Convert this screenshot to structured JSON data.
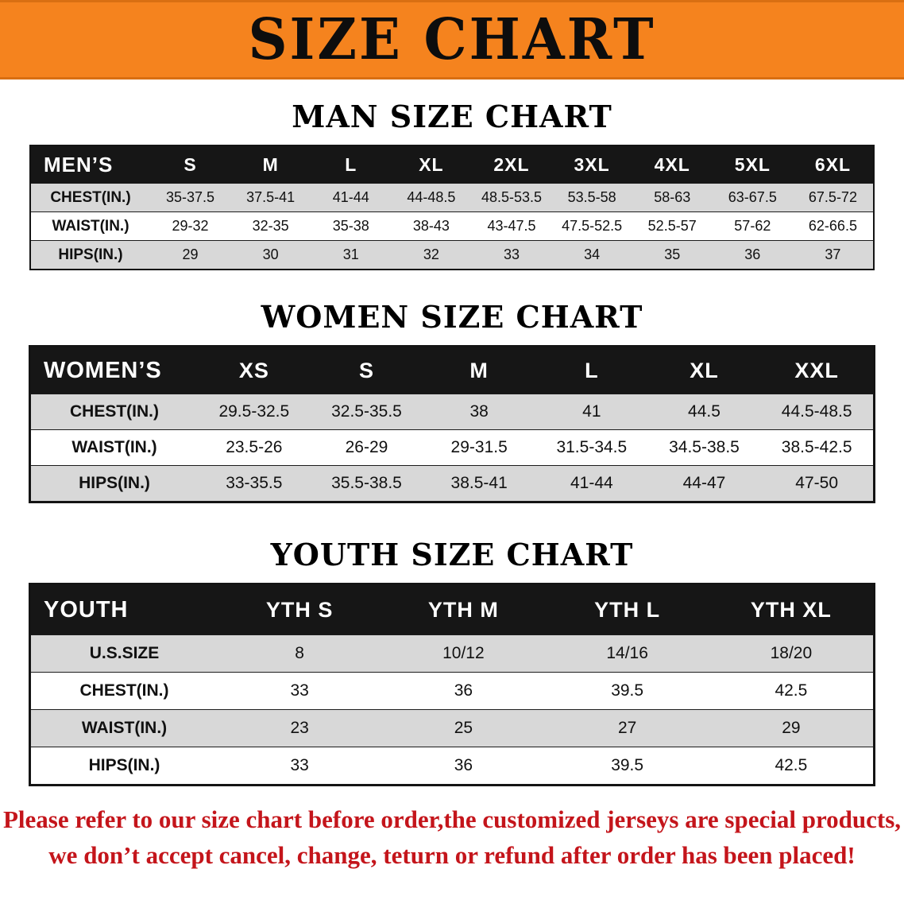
{
  "banner": {
    "title": "SIZE CHART"
  },
  "colors": {
    "banner_orange": "#F5831E",
    "table_header_black": "#161616",
    "row_stripe_gray": "#D8D8D8",
    "footer_red": "#C4151B"
  },
  "sections": [
    {
      "id": "men",
      "title": "MAN SIZE CHART",
      "table": {
        "header": [
          "MEN’S",
          "S",
          "M",
          "L",
          "XL",
          "2XL",
          "3XL",
          "4XL",
          "5XL",
          "6XL"
        ],
        "rows": [
          [
            "CHEST(IN.)",
            "35-37.5",
            "37.5-41",
            "41-44",
            "44-48.5",
            "48.5-53.5",
            "53.5-58",
            "58-63",
            "63-67.5",
            "67.5-72"
          ],
          [
            "WAIST(IN.)",
            "29-32",
            "32-35",
            "35-38",
            "38-43",
            "43-47.5",
            "47.5-52.5",
            "52.5-57",
            "57-62",
            "62-66.5"
          ],
          [
            "HIPS(IN.)",
            "29",
            "30",
            "31",
            "32",
            "33",
            "34",
            "35",
            "36",
            "37"
          ]
        ]
      }
    },
    {
      "id": "women",
      "title": "WOMEN SIZE CHART",
      "table": {
        "header": [
          "WOMEN’S",
          "XS",
          "S",
          "M",
          "L",
          "XL",
          "XXL"
        ],
        "rows": [
          [
            "CHEST(IN.)",
            "29.5-32.5",
            "32.5-35.5",
            "38",
            "41",
            "44.5",
            "44.5-48.5"
          ],
          [
            "WAIST(IN.)",
            "23.5-26",
            "26-29",
            "29-31.5",
            "31.5-34.5",
            "34.5-38.5",
            "38.5-42.5"
          ],
          [
            "HIPS(IN.)",
            "33-35.5",
            "35.5-38.5",
            "38.5-41",
            "41-44",
            "44-47",
            "47-50"
          ]
        ]
      }
    },
    {
      "id": "youth",
      "title": "YOUTH SIZE CHART",
      "table": {
        "header": [
          "YOUTH",
          "YTH S",
          "YTH M",
          "YTH L",
          "YTH XL"
        ],
        "rows": [
          [
            "U.S.SIZE",
            "8",
            "10/12",
            "14/16",
            "18/20"
          ],
          [
            "CHEST(IN.)",
            "33",
            "36",
            "39.5",
            "42.5"
          ],
          [
            "WAIST(IN.)",
            "23",
            "25",
            "27",
            "29"
          ],
          [
            "HIPS(IN.)",
            "33",
            "36",
            "39.5",
            "42.5"
          ]
        ]
      }
    }
  ],
  "footer": {
    "line1": "Please refer to our size chart before order,the customized jerseys are special products,",
    "line2": "we don’t accept cancel, change, teturn or refund after order has been placed!"
  }
}
